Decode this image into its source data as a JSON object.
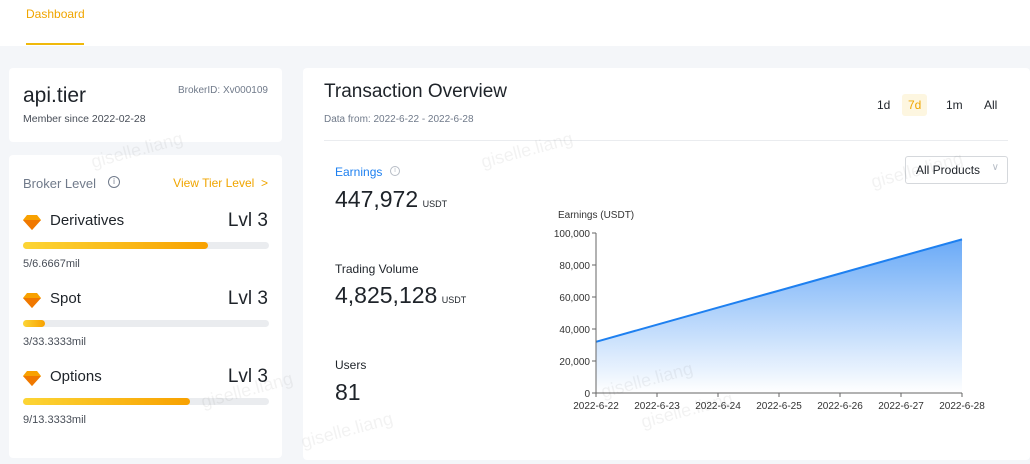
{
  "nav": {
    "tab": "Dashboard"
  },
  "profile": {
    "name": "api.tier",
    "broker_id": "BrokerID: Xv000109",
    "member_since": "Member since 2022-02-28"
  },
  "broker_level": {
    "title": "Broker Level",
    "view_link": "View Tier Level  >",
    "items": [
      {
        "name": "Derivatives",
        "level": "Lvl 3",
        "progress_text": "5/6.6667mil",
        "progress": 0.75
      },
      {
        "name": "Spot",
        "level": "Lvl 3",
        "progress_text": "3/33.3333mil",
        "progress": 0.09
      },
      {
        "name": "Options",
        "level": "Lvl 3",
        "progress_text": "9/13.3333mil",
        "progress": 0.68
      }
    ]
  },
  "overview": {
    "title": "Transaction Overview",
    "date_range": "Data from: 2022-6-22 - 2022-6-28",
    "periods": [
      "1d",
      "7d",
      "1m",
      "All"
    ],
    "active_period": "7d",
    "product_select": "All Products",
    "earnings_label": "Earnings",
    "earnings_value": "447,972",
    "earnings_unit": "USDT",
    "volume_label": "Trading Volume",
    "volume_value": "4,825,128",
    "volume_unit": "USDT",
    "users_label": "Users",
    "users_value": "81"
  },
  "watermark": "giselle.liang",
  "colors": {
    "accent": "#f0b90b",
    "line": "#1e80f0"
  },
  "chart_data": {
    "type": "area",
    "ylabel": "Earnings (USDT)",
    "ylim": [
      0,
      100000
    ],
    "yticks": [
      "0",
      "20,000",
      "40,000",
      "60,000",
      "80,000",
      "100,000"
    ],
    "categories": [
      "2022-6-22",
      "2022-6-23",
      "2022-6-24",
      "2022-6-25",
      "2022-6-26",
      "2022-6-27",
      "2022-6-28"
    ],
    "values": [
      32000,
      42700,
      53400,
      64000,
      74700,
      85400,
      96000
    ],
    "grid": false
  }
}
